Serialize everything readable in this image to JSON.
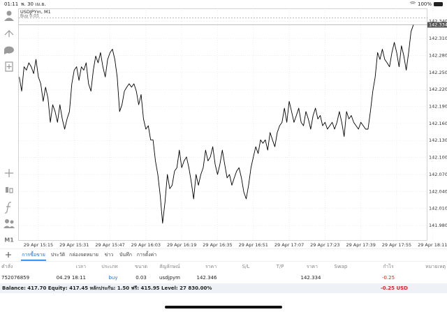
{
  "status_bar": {
    "time": "01:11",
    "date": "พ. 30 เม.ย.",
    "battery": "100%"
  },
  "toolbar": {
    "timeframe": "M1"
  },
  "chart": {
    "type": "line",
    "symbol_label": "USDJPYm, M1",
    "order_label": "Buy 0.03",
    "order_price": 142.346,
    "current_price": 142.334,
    "current_price_label": "142.334",
    "color": "#000000",
    "grid": true,
    "ylim": [
      141.953,
      142.363
    ],
    "yticks": [
      {
        "value": 142.34,
        "label": "142.340"
      },
      {
        "value": 142.31,
        "label": "142.310"
      },
      {
        "value": 142.28,
        "label": "142.280"
      },
      {
        "value": 142.25,
        "label": "142.250"
      },
      {
        "value": 142.22,
        "label": "142.220"
      },
      {
        "value": 142.19,
        "label": "142.190"
      },
      {
        "value": 142.16,
        "label": "142.160"
      },
      {
        "value": 142.13,
        "label": "142.130"
      },
      {
        "value": 142.1,
        "label": "142.100"
      },
      {
        "value": 142.07,
        "label": "142.070"
      },
      {
        "value": 142.04,
        "label": "142.040"
      },
      {
        "value": 142.01,
        "label": "142.010"
      },
      {
        "value": 141.98,
        "label": "141.980"
      }
    ],
    "categories": [
      null,
      null,
      null,
      null,
      null,
      null,
      null,
      null,
      "29 Apr 15:15",
      null,
      null,
      null,
      null,
      null,
      null,
      null,
      null,
      null,
      null,
      null,
      null,
      null,
      null,
      "29 Apr 15:31",
      null,
      null,
      null,
      null,
      null,
      null,
      null,
      null,
      null,
      null,
      null,
      null,
      null,
      null,
      "29 Apr 15:47",
      null,
      null,
      null,
      null,
      null,
      null,
      null,
      null,
      null,
      null,
      null,
      null,
      null,
      null,
      "29 Apr 16:03",
      null,
      null,
      null,
      null,
      null,
      null,
      null,
      null,
      null,
      null,
      null,
      null,
      null,
      null,
      "29 Apr 16:19",
      null,
      null,
      null,
      null,
      null,
      null,
      null,
      null,
      null,
      null,
      null,
      null,
      null,
      null,
      "29 Apr 16:35",
      null,
      null,
      null,
      null,
      null,
      null,
      null,
      null,
      null,
      null,
      null,
      null,
      null,
      null,
      "29 Apr 16:51",
      null,
      null,
      null,
      null,
      null,
      null,
      null,
      null,
      null,
      null,
      null,
      null,
      null,
      null,
      "29 Apr 17:07",
      null,
      null,
      null,
      null,
      null,
      null,
      null,
      null,
      null,
      null,
      null,
      null,
      null,
      null,
      "29 Apr 17:23",
      null,
      null,
      null,
      null,
      null,
      null,
      null,
      null,
      null,
      null,
      null,
      null,
      null,
      null,
      "29 Apr 17:39",
      null,
      null,
      null,
      null,
      null,
      null,
      null,
      null,
      null,
      null,
      null,
      null,
      null,
      null,
      "29 Apr 17:55",
      null,
      null,
      null,
      null,
      null,
      null,
      null,
      null,
      null,
      null,
      null,
      null,
      null,
      null,
      "29 Apr 18:11"
    ],
    "values": [
      142.242,
      142.217,
      142.26,
      142.254,
      142.267,
      142.26,
      142.248,
      142.273,
      142.242,
      142.23,
      142.199,
      142.224,
      142.205,
      142.162,
      142.193,
      142.181,
      142.162,
      142.193,
      142.168,
      142.15,
      142.168,
      142.181,
      142.23,
      142.254,
      142.26,
      142.236,
      142.26,
      142.254,
      142.267,
      142.23,
      142.217,
      142.254,
      142.279,
      142.267,
      142.285,
      142.26,
      142.242,
      142.273,
      142.285,
      142.291,
      142.273,
      142.242,
      142.181,
      142.193,
      142.217,
      142.224,
      142.23,
      142.224,
      142.23,
      142.217,
      142.193,
      142.211,
      142.168,
      142.15,
      142.156,
      142.131,
      142.131,
      142.094,
      142.07,
      142.033,
      141.984,
      142.021,
      142.07,
      142.045,
      142.051,
      142.076,
      142.082,
      142.113,
      142.082,
      142.094,
      142.101,
      142.082,
      142.057,
      142.027,
      142.07,
      142.051,
      142.07,
      142.082,
      142.113,
      142.094,
      142.101,
      142.119,
      142.088,
      142.07,
      142.088,
      142.113,
      142.088,
      142.064,
      142.07,
      142.051,
      142.064,
      142.076,
      142.082,
      142.064,
      142.039,
      142.027,
      142.051,
      142.082,
      142.101,
      142.119,
      142.107,
      142.131,
      142.125,
      142.131,
      142.113,
      142.144,
      142.131,
      142.119,
      142.144,
      142.156,
      142.162,
      142.187,
      142.162,
      142.199,
      142.181,
      142.162,
      142.174,
      142.187,
      142.162,
      142.156,
      142.181,
      142.168,
      142.15,
      142.174,
      142.187,
      142.168,
      142.174,
      142.156,
      142.162,
      142.15,
      142.156,
      142.162,
      142.15,
      142.162,
      142.181,
      142.162,
      142.137,
      142.181,
      142.168,
      142.174,
      142.162,
      142.156,
      142.15,
      142.162,
      142.156,
      142.15,
      142.15,
      142.181,
      142.217,
      142.242,
      142.285,
      142.273,
      142.291,
      142.273,
      142.267,
      142.26,
      142.285,
      142.303,
      142.285,
      142.26,
      142.297,
      142.279,
      142.254,
      142.285,
      142.322,
      142.334,
      null,
      null,
      null,
      null,
      null,
      null,
      null,
      null
    ]
  },
  "tabs": [
    "การซื้อขาย",
    "ประวัติ",
    "กล่องจดหมาย",
    "ข่าว",
    "บันทึก",
    "การตั้งค่า"
  ],
  "table": {
    "headers": [
      "คำสั่ง",
      "เวลา",
      "ประเภท",
      "ขนาด",
      "สัญลักษณ์",
      "ราคา",
      "S/L",
      "T/P",
      "ราคา",
      "Swap",
      "กำไร",
      "หมายเหตุ"
    ],
    "rows": [
      {
        "order": "752076859",
        "time": "04.29 18:11",
        "type": "buy",
        "volume": "0.03",
        "symbol": "usdjpym",
        "open_price": "142.346",
        "price": "142.334",
        "profit": "-0.25"
      }
    ]
  },
  "account": {
    "summary": "Balance: 417.70 Equity: 417.45 หลักประกัน: 1.50 ฟรี: 415.95 Level: 27 830.00%",
    "profit": "-0.25 USD"
  }
}
